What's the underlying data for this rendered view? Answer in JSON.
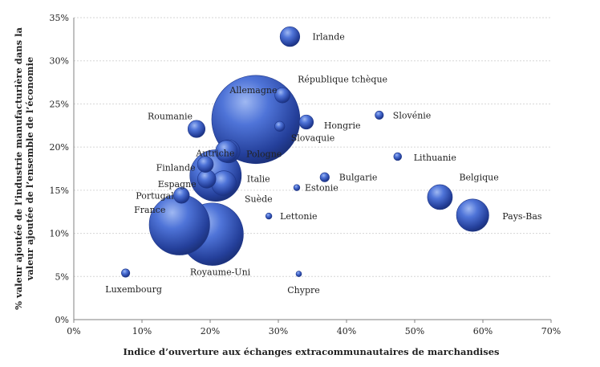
{
  "chart_data": {
    "type": "scatter",
    "subtype": "bubble",
    "xlabel": "Indice d’ouverture aux échanges extracommunautaires de marchandises",
    "ylabel_lines": [
      "% valeur ajoutée de l’industrie manufacturière dans la",
      "valeur ajoutée de l’ensemble de l’économie"
    ],
    "xlim": [
      0,
      0.7
    ],
    "ylim": [
      0,
      0.35
    ],
    "x_ticks": [
      "0%",
      "10%",
      "20%",
      "30%",
      "40%",
      "50%",
      "60%",
      "70%"
    ],
    "y_ticks": [
      "0%",
      "5%",
      "10%",
      "15%",
      "20%",
      "25%",
      "30%",
      "35%"
    ],
    "grid": "horizontal",
    "bubble_color": "#2f55c0",
    "points": [
      {
        "name": "Irlande",
        "x": 0.317,
        "y": 0.328,
        "size": 5
      },
      {
        "name": "République tchèque",
        "x": 0.306,
        "y": 0.26,
        "size": 3
      },
      {
        "name": "Allemagne",
        "x": 0.267,
        "y": 0.232,
        "size": 100
      },
      {
        "name": "Slovénie",
        "x": 0.448,
        "y": 0.237,
        "size": 0.9
      },
      {
        "name": "Hongrie",
        "x": 0.341,
        "y": 0.229,
        "size": 2.6
      },
      {
        "name": "Roumanie",
        "x": 0.18,
        "y": 0.221,
        "size": 3.8
      },
      {
        "name": "Slovaquie",
        "x": 0.302,
        "y": 0.224,
        "size": 1.3
      },
      {
        "name": "Pologne",
        "x": 0.227,
        "y": 0.195,
        "size": 6.8
      },
      {
        "name": "Autriche",
        "x": 0.224,
        "y": 0.195,
        "size": 6.2
      },
      {
        "name": "Lithuanie",
        "x": 0.475,
        "y": 0.189,
        "size": 0.8
      },
      {
        "name": "Finlande",
        "x": 0.193,
        "y": 0.18,
        "size": 3.3
      },
      {
        "name": "Italie",
        "x": 0.208,
        "y": 0.167,
        "size": 34
      },
      {
        "name": "Bulgarie",
        "x": 0.368,
        "y": 0.165,
        "size": 1.1
      },
      {
        "name": "Belgique",
        "x": 0.537,
        "y": 0.142,
        "size": 8
      },
      {
        "name": "Espagne",
        "x": 0.195,
        "y": 0.163,
        "size": 4.3
      },
      {
        "name": "Suède",
        "x": 0.22,
        "y": 0.158,
        "size": 8
      },
      {
        "name": "Estonie",
        "x": 0.327,
        "y": 0.153,
        "size": 0.5
      },
      {
        "name": "Portugal",
        "x": 0.158,
        "y": 0.144,
        "size": 3.2
      },
      {
        "name": "Pays-Bas",
        "x": 0.585,
        "y": 0.121,
        "size": 13.5
      },
      {
        "name": "Lettonie",
        "x": 0.286,
        "y": 0.12,
        "size": 0.5
      },
      {
        "name": "France",
        "x": 0.155,
        "y": 0.11,
        "size": 47
      },
      {
        "name": "Royaume-Uni",
        "x": 0.203,
        "y": 0.099,
        "size": 50
      },
      {
        "name": "Luxembourg",
        "x": 0.076,
        "y": 0.054,
        "size": 0.9
      },
      {
        "name": "Chypre",
        "x": 0.33,
        "y": 0.053,
        "size": 0.3
      }
    ]
  }
}
